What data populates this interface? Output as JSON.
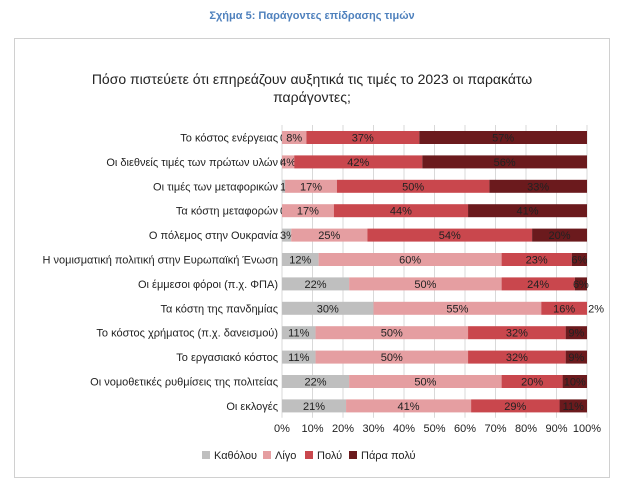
{
  "caption": "Σχήμα 5: Παράγοντες επίδρασης τιμών",
  "chart_data": {
    "type": "bar",
    "orientation": "horizontal",
    "stacked": "percent",
    "title": "Πόσο πιστεύετε ότι επηρεάζουν αυξητικά τις τιμές το 2023 οι παρακάτω παράγοντες;",
    "title_lines": [
      "Πόσο πιστεύετε ότι επηρεάζουν αυξητικά τις τιμές το 2023 οι παρακάτω",
      "παράγοντες;"
    ],
    "categories": [
      "Το κόστος ενέργειας",
      "Οι διεθνείς τιμές των πρώτων υλών",
      "Οι τιμές των μεταφορικών",
      "Τα κόστη μεταφορών",
      "Ο πόλεμος στην Ουκρανία",
      "Η νομισματική πολιτική στην Ευρωπαϊκή Ένωση",
      "Οι έμμεσοι φόροι (π.χ. ΦΠΑ)",
      "Τα κόστη της πανδημίας",
      "Το κόστος χρήματος (π.χ. δανεισμού)",
      "Το εργασιακό κόστος",
      "Οι νομοθετικές ρυθμίσεις της πολιτείας",
      "Οι εκλογές"
    ],
    "series": [
      {
        "name": "Καθόλου",
        "color": "#bfbfbf",
        "values": [
          0,
          0,
          1,
          0,
          3,
          12,
          22,
          30,
          11,
          11,
          22,
          21
        ]
      },
      {
        "name": "Λίγο",
        "color": "#e59ea1",
        "values": [
          8,
          4,
          17,
          17,
          25,
          60,
          50,
          55,
          50,
          50,
          50,
          41
        ]
      },
      {
        "name": "Πολύ",
        "color": "#c9474d",
        "values": [
          37,
          42,
          50,
          44,
          54,
          23,
          24,
          16,
          32,
          32,
          20,
          29
        ]
      },
      {
        "name": "Πάρα πολύ",
        "color": "#6b1a1d",
        "values": [
          57,
          56,
          33,
          41,
          20,
          6,
          6,
          2,
          9,
          9,
          10,
          11
        ]
      }
    ],
    "xticks": [
      "0%",
      "10%",
      "20%",
      "30%",
      "40%",
      "50%",
      "60%",
      "70%",
      "80%",
      "90%",
      "100%"
    ],
    "xlim": [
      0,
      100
    ],
    "legend_position": "bottom",
    "grid": true
  }
}
